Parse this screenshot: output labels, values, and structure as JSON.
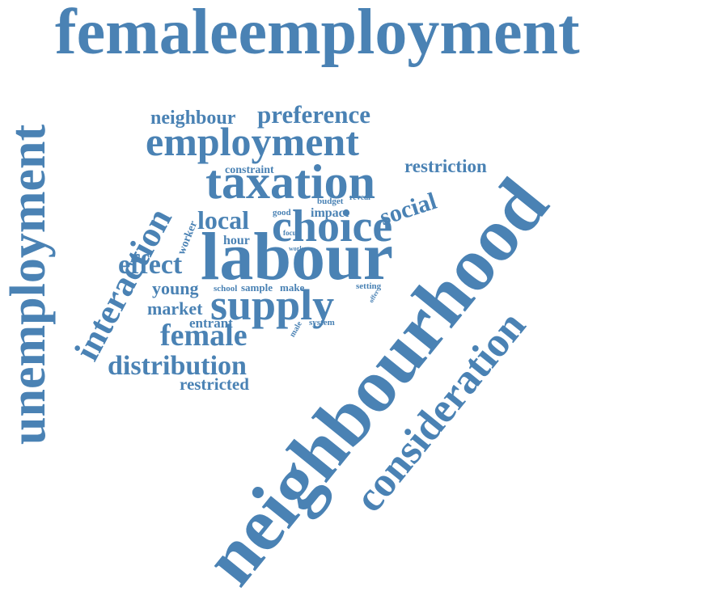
{
  "style": {
    "word_color": "#4a82b4",
    "background": "#ffffff"
  },
  "words": {
    "femaleemployment": "femaleemployment",
    "unemployment": "unemployment",
    "neighbourhood": "neighbourhood",
    "consideration": "consideration",
    "interaction": "interaction",
    "labour": "labour",
    "supply": "supply",
    "choice": "choice",
    "taxation": "taxation",
    "employment": "employment",
    "preference": "preference",
    "neighbour": "neighbour",
    "restriction": "restriction",
    "constraint": "constraint",
    "social": "social",
    "local": "local",
    "effect": "effect",
    "female": "female",
    "distribution": "distribution",
    "restricted": "restricted",
    "market": "market",
    "young": "young",
    "entrant": "entrant",
    "hour": "hour",
    "worker": "worker",
    "budget": "budget",
    "reveal": "reveal",
    "impact": "impact",
    "good": "good",
    "focus": "focus",
    "work": "work",
    "school": "school",
    "sample": "sample",
    "make": "make",
    "setting": "setting",
    "offer": "offer",
    "male": "male",
    "system": "system"
  }
}
